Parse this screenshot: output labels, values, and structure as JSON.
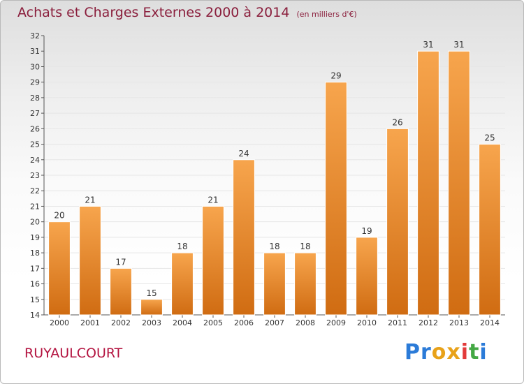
{
  "header": {
    "title": "Achats et Charges Externes 2000 à 2014",
    "subtitle": "(en milliers d'€)"
  },
  "footer": {
    "city": "RUYAULCOURT",
    "logo_parts": [
      "Pr",
      "o",
      "x",
      "i",
      "t",
      "i"
    ]
  },
  "colors": {
    "bar_light": "#f7a54d",
    "bar_dark": "#d06c12",
    "title": "#8a1e3c",
    "city": "#b3123f",
    "grid": "#e6e6e6"
  },
  "chart_data": {
    "type": "bar",
    "title": "Achats et Charges Externes 2000 à 2014",
    "subtitle": "(en milliers d'€)",
    "xlabel": "",
    "ylabel": "",
    "categories": [
      "2000",
      "2001",
      "2002",
      "2003",
      "2004",
      "2005",
      "2006",
      "2007",
      "2008",
      "2009",
      "2010",
      "2011",
      "2012",
      "2013",
      "2014"
    ],
    "values": [
      20,
      21,
      17,
      15,
      18,
      21,
      24,
      18,
      18,
      29,
      19,
      26,
      31,
      31,
      25
    ],
    "ylim": [
      14,
      32
    ],
    "yticks": [
      14,
      15,
      16,
      17,
      18,
      19,
      20,
      21,
      22,
      23,
      24,
      25,
      26,
      27,
      28,
      29,
      30,
      31,
      32
    ],
    "grid": true,
    "legend": "none",
    "data_labels": true
  }
}
